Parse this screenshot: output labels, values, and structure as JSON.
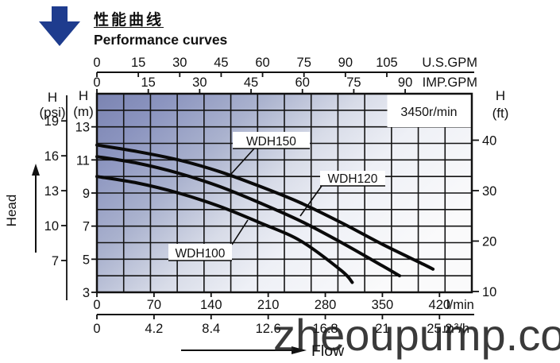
{
  "header": {
    "title_zh": "性能曲线",
    "title_en": "Performance curves"
  },
  "chart_data": {
    "type": "line",
    "title": "Performance curves",
    "rpm_label": "3450r/min",
    "flow_label": "Flow",
    "head_label": "Head",
    "xlim_lmin": [
      0,
      460
    ],
    "ylim_m": [
      3,
      15
    ],
    "grid": "on",
    "x_axes": [
      {
        "id": "us_gpm",
        "label": "U.S.GPM",
        "ticks": [
          0,
          15,
          30,
          45,
          60,
          75,
          90,
          105
        ]
      },
      {
        "id": "imp_gpm",
        "label": "IMP.GPM",
        "ticks": [
          0,
          15,
          30,
          45,
          60,
          75,
          90
        ]
      },
      {
        "id": "lmin",
        "label": "l/min",
        "ticks": [
          0,
          70,
          140,
          210,
          280,
          350,
          420
        ]
      },
      {
        "id": "m3h",
        "label": "m³/h",
        "ticks": [
          0,
          4.2,
          8.4,
          12.6,
          16.8,
          21,
          25.2
        ]
      }
    ],
    "y_axes": [
      {
        "id": "psi",
        "header_line1": "H",
        "header_line2": "(psi)",
        "ticks": [
          19,
          16,
          13,
          10,
          7
        ]
      },
      {
        "id": "m",
        "header_line1": "H",
        "header_line2": "(m)",
        "ticks": [
          13,
          11,
          9,
          7,
          5,
          3
        ]
      },
      {
        "id": "ft",
        "header_line1": "H",
        "header_line2": "(ft)",
        "ticks": [
          40,
          30,
          20,
          10
        ]
      }
    ],
    "series": [
      {
        "name": "WDH150",
        "points_lmin_m": [
          [
            0,
            11.9
          ],
          [
            50,
            11.5
          ],
          [
            100,
            11.0
          ],
          [
            150,
            10.3
          ],
          [
            200,
            9.4
          ],
          [
            250,
            8.4
          ],
          [
            300,
            7.2
          ],
          [
            350,
            5.9
          ],
          [
            400,
            4.7
          ],
          [
            412,
            4.4
          ]
        ]
      },
      {
        "name": "WDH120",
        "points_lmin_m": [
          [
            0,
            11.2
          ],
          [
            50,
            10.8
          ],
          [
            100,
            10.2
          ],
          [
            150,
            9.4
          ],
          [
            200,
            8.4
          ],
          [
            250,
            7.3
          ],
          [
            300,
            6.0
          ],
          [
            350,
            4.6
          ],
          [
            371,
            4.0
          ]
        ]
      },
      {
        "name": "WDH100",
        "points_lmin_m": [
          [
            0,
            10.0
          ],
          [
            50,
            9.6
          ],
          [
            100,
            9.0
          ],
          [
            150,
            8.2
          ],
          [
            200,
            7.2
          ],
          [
            250,
            6.1
          ],
          [
            300,
            4.3
          ],
          [
            313,
            3.6
          ]
        ]
      }
    ]
  },
  "watermark": {
    "text": "zheoupump.com"
  },
  "colors": {
    "arrow_blue": "#1e3c8e",
    "curve_black": "#0a0a0a",
    "plot_left": "#7b84b2",
    "plot_right": "#fbfbfc"
  }
}
